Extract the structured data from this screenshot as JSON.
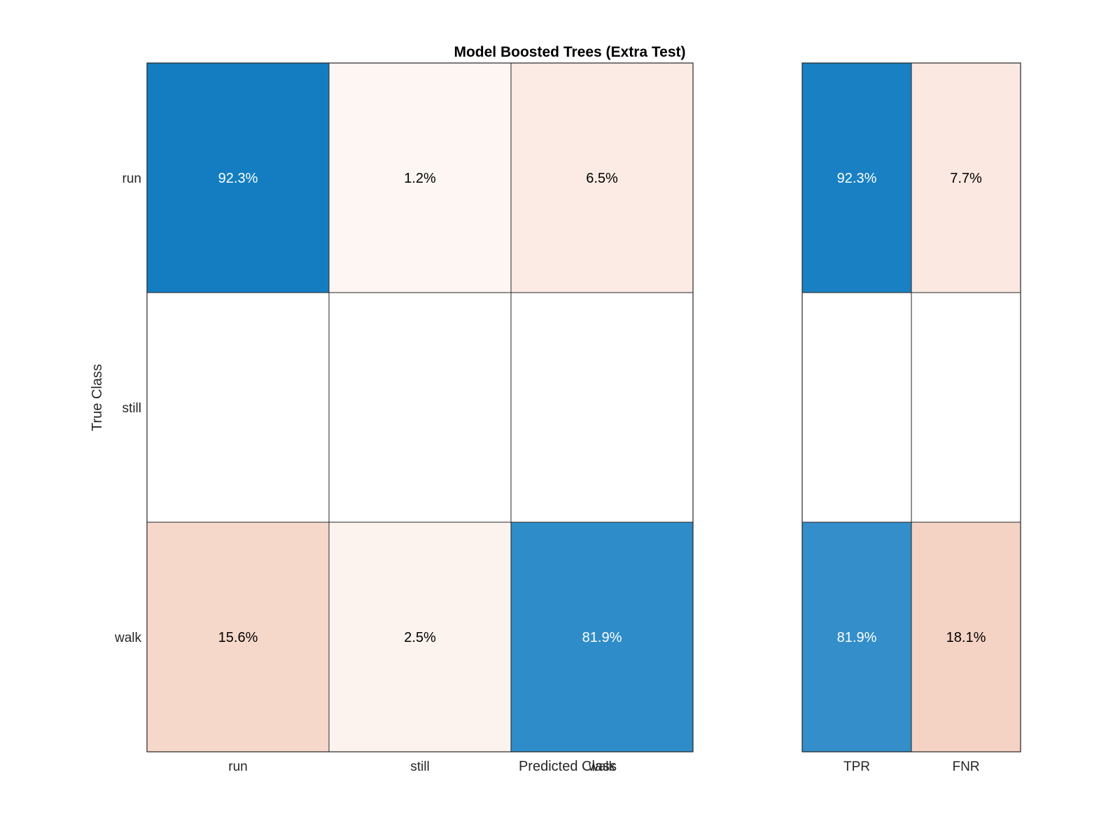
{
  "chart_data": [
    {
      "type": "heatmap",
      "title": "Model Boosted Trees (Extra Test)",
      "xlabel": "Predicted Class",
      "ylabel": "True Class",
      "row_labels": [
        "run",
        "still",
        "walk"
      ],
      "col_labels": [
        "run",
        "still",
        "walk"
      ],
      "cells": [
        [
          "92.3%",
          "1.2%",
          "6.5%"
        ],
        [
          "",
          "",
          ""
        ],
        [
          "15.6%",
          "2.5%",
          "81.9%"
        ]
      ],
      "values": [
        [
          92.3,
          1.2,
          6.5
        ],
        [
          null,
          null,
          null
        ],
        [
          15.6,
          2.5,
          81.9
        ]
      ],
      "diagonal_color": "#0072bd",
      "offdiagonal_color": "#d95319"
    },
    {
      "type": "heatmap",
      "row_labels": [
        "run",
        "still",
        "walk"
      ],
      "col_labels": [
        "TPR",
        "FNR"
      ],
      "cells": [
        [
          "92.3%",
          "7.7%"
        ],
        [
          "",
          ""
        ],
        [
          "81.9%",
          "18.1%"
        ]
      ],
      "values": [
        [
          92.3,
          7.7
        ],
        [
          null,
          null
        ],
        [
          81.9,
          18.1
        ]
      ],
      "positive_color": "#0072bd",
      "negative_color": "#d95319"
    }
  ]
}
